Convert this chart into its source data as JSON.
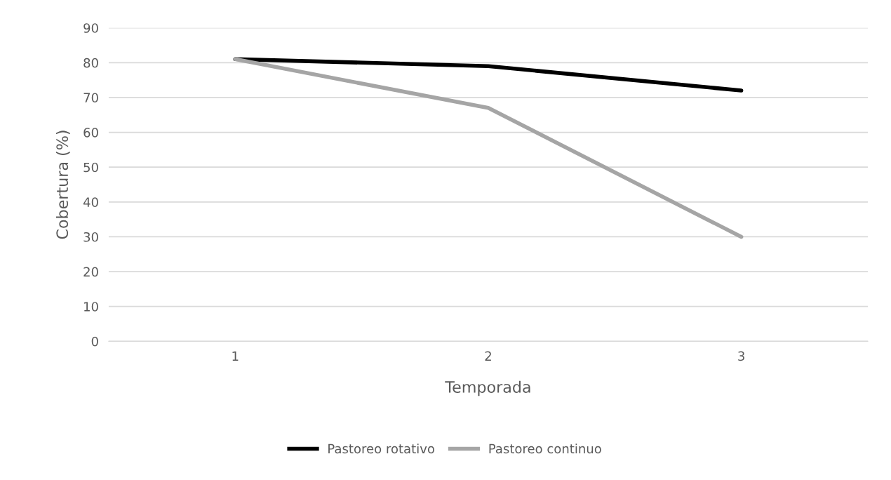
{
  "chart_data": {
    "type": "line",
    "xlabel": "Temporada",
    "ylabel": "Cobertura (%)",
    "categories": [
      "1",
      "2",
      "3"
    ],
    "series": [
      {
        "name": "Pastoreo rotativo",
        "color": "#000000",
        "values": [
          81,
          79,
          72
        ]
      },
      {
        "name": "Pastoreo continuo",
        "color": "#a5a5a5",
        "values": [
          81,
          67,
          30
        ]
      }
    ],
    "ylim": [
      0,
      90
    ],
    "yticks": [
      0,
      10,
      20,
      30,
      40,
      50,
      60,
      70,
      80,
      90
    ],
    "grid": "y",
    "legend": "bottom",
    "marker": "none",
    "line_style": "solid"
  }
}
